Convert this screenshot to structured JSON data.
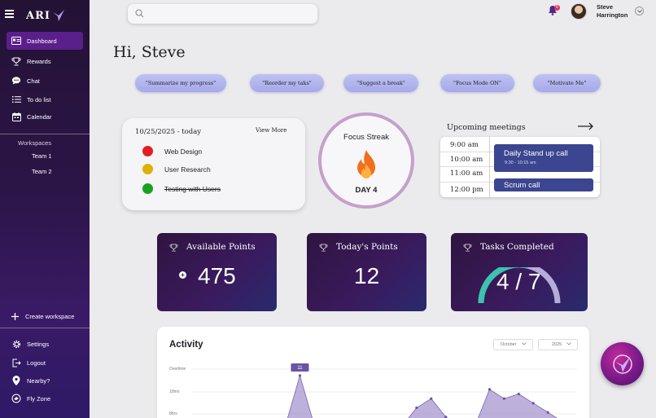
{
  "app": {
    "logo_text": "ARI"
  },
  "sidebar": {
    "nav": [
      {
        "label": "Dashboard",
        "icon": "dashboard-icon",
        "active": true
      },
      {
        "label": "Rewards",
        "icon": "trophy-icon"
      },
      {
        "label": "Chat",
        "icon": "chat-icon"
      },
      {
        "label": "To do list",
        "icon": "list-icon"
      },
      {
        "label": "Calendar",
        "icon": "calendar-icon"
      }
    ],
    "workspaces_heading": "Workspaces",
    "teams": [
      "Team 1",
      "Team 2"
    ],
    "create_workspace": "Create workspace",
    "bottom": [
      {
        "label": "Settings",
        "icon": "gear-icon"
      },
      {
        "label": "Logout",
        "icon": "logout-icon"
      },
      {
        "label": "Nearby?",
        "icon": "location-pin-icon"
      },
      {
        "label": "Fly Zone",
        "icon": "fly-zone-icon"
      }
    ]
  },
  "header": {
    "search_placeholder": "",
    "notification_count": "6",
    "user_first": "Steve",
    "user_last": "Harrington"
  },
  "greeting": "Hi, Steve",
  "chips": [
    "\"Summarize my progress\"",
    "\"Reorder my taks\"",
    "\"Suggest a break\"",
    "\"Focus Mode ON\"",
    "\"Motivate Me\""
  ],
  "tasks_card": {
    "date": "10/25/2025 - today",
    "view_more": "View More",
    "tasks": [
      {
        "label": "Web Design",
        "color": "#e02020",
        "done": false
      },
      {
        "label": "User Research",
        "color": "#e0b000",
        "done": false
      },
      {
        "label": "Testing with Users",
        "color": "#1aa020",
        "done": true
      }
    ]
  },
  "streak": {
    "title": "Focus Streak",
    "day": "DAY 4",
    "ring_color": "#c5a0cc",
    "flame_color": "#f07020"
  },
  "meetings": {
    "title": "Upcoming meetings",
    "times": [
      "9:00 am",
      "10:00 am",
      "11:00 am",
      "12:00 pm"
    ],
    "events": [
      {
        "title": "Daily Stand up call",
        "time": "9:30 - 10:15 am"
      },
      {
        "title": "Scrum call",
        "time": ""
      }
    ],
    "event_color": "#3b4590"
  },
  "stats": {
    "available_points": {
      "label": "Available Points",
      "value": "475"
    },
    "todays_points": {
      "label": "Today's Points",
      "value": "12"
    },
    "tasks_completed": {
      "label": "Tasks Completed",
      "value": "4 / 7",
      "done": 4,
      "total": 7
    }
  },
  "activity": {
    "title": "Activity",
    "month": "October",
    "year": "2025"
  },
  "chart_data": {
    "type": "area",
    "title": "Activity",
    "y_tick_labels": [
      "Overtime",
      "10hrs",
      "8hrs"
    ],
    "tooltip_label": "11",
    "color": "#9a86c8",
    "x": [
      0,
      1,
      2,
      3,
      4,
      5,
      6,
      7,
      8,
      9,
      10,
      11,
      12,
      13,
      14,
      15,
      16,
      17,
      18,
      19,
      20,
      21,
      22,
      23,
      24,
      25,
      26
    ],
    "values": [
      0,
      0,
      0,
      0,
      0,
      0,
      0,
      11,
      0,
      0,
      0,
      0,
      0,
      0,
      0,
      4,
      6,
      2,
      0,
      0,
      8,
      6,
      7,
      5,
      3,
      1,
      0
    ]
  }
}
